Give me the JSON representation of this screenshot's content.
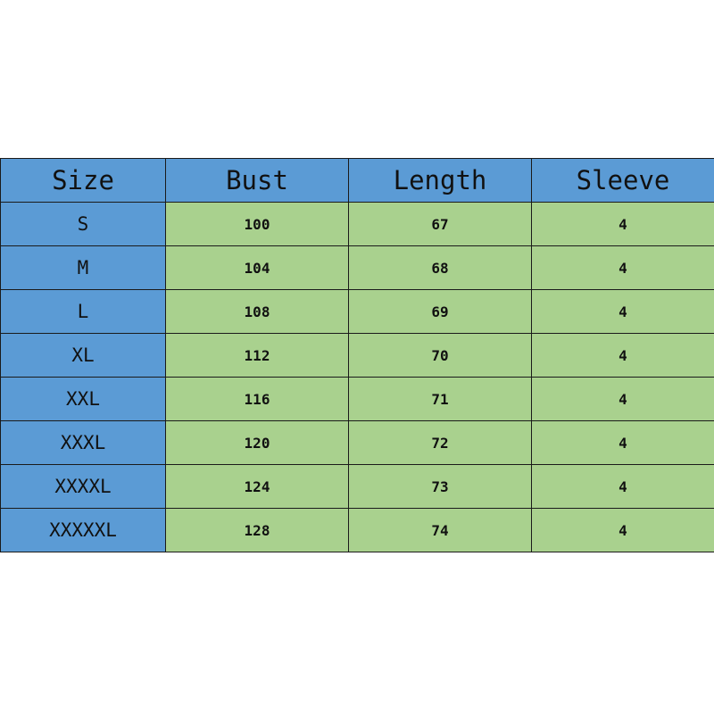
{
  "colors": {
    "header_bg": "#5b9bd5",
    "size_col_bg": "#5b9bd5",
    "value_bg": "#a9d18e"
  },
  "headers": [
    "Size",
    "Bust",
    "Length",
    "Sleeve"
  ],
  "rows": [
    {
      "size": "S",
      "bust": "100",
      "length": "67",
      "sleeve": "4"
    },
    {
      "size": "M",
      "bust": "104",
      "length": "68",
      "sleeve": "4"
    },
    {
      "size": "L",
      "bust": "108",
      "length": "69",
      "sleeve": "4"
    },
    {
      "size": "XL",
      "bust": "112",
      "length": "70",
      "sleeve": "4"
    },
    {
      "size": "XXL",
      "bust": "116",
      "length": "71",
      "sleeve": "4"
    },
    {
      "size": "XXXL",
      "bust": "120",
      "length": "72",
      "sleeve": "4"
    },
    {
      "size": "XXXXL",
      "bust": "124",
      "length": "73",
      "sleeve": "4"
    },
    {
      "size": "XXXXXL",
      "bust": "128",
      "length": "74",
      "sleeve": "4"
    }
  ]
}
